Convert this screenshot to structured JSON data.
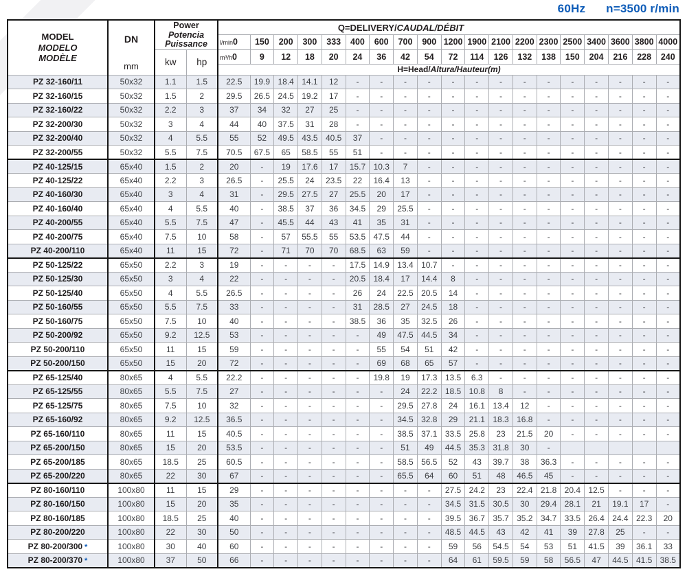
{
  "header": {
    "frequency": "60Hz",
    "speed": "n=3500 r/min"
  },
  "colors": {
    "accent_blue": "#0e5cb8",
    "shaded_row": "#e8ebf2",
    "grid_line": "#abadb2",
    "frame": "#161616"
  },
  "table": {
    "model_header": {
      "line1": "MODEL",
      "line2": "MODELO",
      "line3": "MODÈLE"
    },
    "dn_header": {
      "label": "DN",
      "unit": "mm"
    },
    "power_header": {
      "line1": "Power",
      "line2": "Potencia",
      "line3": "Puissance",
      "kw": "kw",
      "hp": "hp"
    },
    "q_header": {
      "roman": "Q=DELIVERY/",
      "italic": "CAUDAL/DÉBIT"
    },
    "head_header": {
      "roman": "H=Head/",
      "italic": "Altura/Hauteur(m)"
    },
    "flow_units": {
      "lmin": "l/min",
      "m3h": "m³/h"
    },
    "flow_lmin": [
      "0",
      "150",
      "200",
      "300",
      "333",
      "400",
      "600",
      "700",
      "900",
      "1200",
      "1900",
      "2100",
      "2200",
      "2300",
      "2500",
      "3400",
      "3600",
      "3800",
      "4000"
    ],
    "flow_m3h": [
      "0",
      "9",
      "12",
      "18",
      "20",
      "24",
      "36",
      "42",
      "54",
      "72",
      "114",
      "126",
      "132",
      "138",
      "150",
      "204",
      "216",
      "228",
      "240"
    ],
    "group_start_indexes": [
      6,
      13,
      21,
      29
    ],
    "rows": [
      {
        "model": "PZ 32-160/11",
        "star": false,
        "dn": "50x32",
        "kw": "1.1",
        "hp": "1.5",
        "h": [
          "22.5",
          "19.9",
          "18.4",
          "14.1",
          "12",
          "-",
          "-",
          "-",
          "-",
          "-",
          "-",
          "-",
          "-",
          "-",
          "-",
          "-",
          "-",
          "-",
          "-"
        ]
      },
      {
        "model": "PZ 32-160/15",
        "star": false,
        "dn": "50x32",
        "kw": "1.5",
        "hp": "2",
        "h": [
          "29.5",
          "26.5",
          "24.5",
          "19.2",
          "17",
          "-",
          "-",
          "-",
          "-",
          "-",
          "-",
          "-",
          "-",
          "-",
          "-",
          "-",
          "-",
          "-",
          "-"
        ]
      },
      {
        "model": "PZ 32-160/22",
        "star": false,
        "dn": "50x32",
        "kw": "2.2",
        "hp": "3",
        "h": [
          "37",
          "34",
          "32",
          "27",
          "25",
          "-",
          "-",
          "-",
          "-",
          "-",
          "-",
          "-",
          "-",
          "-",
          "-",
          "-",
          "-",
          "-",
          "-"
        ]
      },
      {
        "model": "PZ 32-200/30",
        "star": false,
        "dn": "50x32",
        "kw": "3",
        "hp": "4",
        "h": [
          "44",
          "40",
          "37.5",
          "31",
          "28",
          "-",
          "-",
          "-",
          "-",
          "-",
          "-",
          "-",
          "-",
          "-",
          "-",
          "-",
          "-",
          "-",
          "-"
        ]
      },
      {
        "model": "PZ 32-200/40",
        "star": false,
        "dn": "50x32",
        "kw": "4",
        "hp": "5.5",
        "h": [
          "55",
          "52",
          "49.5",
          "43.5",
          "40.5",
          "37",
          "-",
          "-",
          "-",
          "-",
          "-",
          "-",
          "-",
          "-",
          "-",
          "-",
          "-",
          "-",
          "-"
        ]
      },
      {
        "model": "PZ 32-200/55",
        "star": false,
        "dn": "50x32",
        "kw": "5.5",
        "hp": "7.5",
        "h": [
          "70.5",
          "67.5",
          "65",
          "58.5",
          "55",
          "51",
          "-",
          "-",
          "-",
          "-",
          "-",
          "-",
          "-",
          "-",
          "-",
          "-",
          "-",
          "-",
          "-"
        ]
      },
      {
        "model": "PZ 40-125/15",
        "star": false,
        "dn": "65x40",
        "kw": "1.5",
        "hp": "2",
        "h": [
          "20",
          "-",
          "19",
          "17.6",
          "17",
          "15.7",
          "10.3",
          "7",
          "-",
          "-",
          "-",
          "-",
          "-",
          "-",
          "-",
          "-",
          "-",
          "-",
          "-"
        ]
      },
      {
        "model": "PZ 40-125/22",
        "star": false,
        "dn": "65x40",
        "kw": "2.2",
        "hp": "3",
        "h": [
          "26.5",
          "-",
          "25.5",
          "24",
          "23.5",
          "22",
          "16.4",
          "13",
          "-",
          "-",
          "-",
          "-",
          "-",
          "-",
          "-",
          "-",
          "-",
          "-",
          "-"
        ]
      },
      {
        "model": "PZ 40-160/30",
        "star": false,
        "dn": "65x40",
        "kw": "3",
        "hp": "4",
        "h": [
          "31",
          "-",
          "29.5",
          "27.5",
          "27",
          "25.5",
          "20",
          "17",
          "-",
          "-",
          "-",
          "-",
          "-",
          "-",
          "-",
          "-",
          "-",
          "-",
          "-"
        ]
      },
      {
        "model": "PZ 40-160/40",
        "star": false,
        "dn": "65x40",
        "kw": "4",
        "hp": "5.5",
        "h": [
          "40",
          "-",
          "38.5",
          "37",
          "36",
          "34.5",
          "29",
          "25.5",
          "-",
          "-",
          "-",
          "-",
          "-",
          "-",
          "-",
          "-",
          "-",
          "-",
          "-"
        ]
      },
      {
        "model": "PZ 40-200/55",
        "star": false,
        "dn": "65x40",
        "kw": "5.5",
        "hp": "7.5",
        "h": [
          "47",
          "-",
          "45.5",
          "44",
          "43",
          "41",
          "35",
          "31",
          "-",
          "-",
          "-",
          "-",
          "-",
          "-",
          "-",
          "-",
          "-",
          "-",
          "-"
        ]
      },
      {
        "model": "PZ 40-200/75",
        "star": false,
        "dn": "65x40",
        "kw": "7.5",
        "hp": "10",
        "h": [
          "58",
          "-",
          "57",
          "55.5",
          "55",
          "53.5",
          "47.5",
          "44",
          "-",
          "-",
          "-",
          "-",
          "-",
          "-",
          "-",
          "-",
          "-",
          "-",
          "-"
        ]
      },
      {
        "model": "PZ 40-200/110",
        "star": false,
        "dn": "65x40",
        "kw": "11",
        "hp": "15",
        "h": [
          "72",
          "-",
          "71",
          "70",
          "70",
          "68.5",
          "63",
          "59",
          "-",
          "-",
          "-",
          "-",
          "-",
          "-",
          "-",
          "-",
          "-",
          "-",
          "-"
        ]
      },
      {
        "model": "PZ 50-125/22",
        "star": false,
        "dn": "65x50",
        "kw": "2.2",
        "hp": "3",
        "h": [
          "19",
          "-",
          "-",
          "-",
          "-",
          "17.5",
          "14.9",
          "13.4",
          "10.7",
          "-",
          "-",
          "-",
          "-",
          "-",
          "-",
          "-",
          "-",
          "-",
          "-"
        ]
      },
      {
        "model": "PZ 50-125/30",
        "star": false,
        "dn": "65x50",
        "kw": "3",
        "hp": "4",
        "h": [
          "22",
          "-",
          "-",
          "-",
          "-",
          "20.5",
          "18.4",
          "17",
          "14.4",
          "8",
          "-",
          "-",
          "-",
          "-",
          "-",
          "-",
          "-",
          "-",
          "-"
        ]
      },
      {
        "model": "PZ 50-125/40",
        "star": false,
        "dn": "65x50",
        "kw": "4",
        "hp": "5.5",
        "h": [
          "26.5",
          "-",
          "-",
          "-",
          "-",
          "26",
          "24",
          "22.5",
          "20.5",
          "14",
          "-",
          "-",
          "-",
          "-",
          "-",
          "-",
          "-",
          "-",
          "-"
        ]
      },
      {
        "model": "PZ 50-160/55",
        "star": false,
        "dn": "65x50",
        "kw": "5.5",
        "hp": "7.5",
        "h": [
          "33",
          "-",
          "-",
          "-",
          "-",
          "31",
          "28.5",
          "27",
          "24.5",
          "18",
          "-",
          "-",
          "-",
          "-",
          "-",
          "-",
          "-",
          "-",
          "-"
        ]
      },
      {
        "model": "PZ 50-160/75",
        "star": false,
        "dn": "65x50",
        "kw": "7.5",
        "hp": "10",
        "h": [
          "40",
          "-",
          "-",
          "-",
          "-",
          "38.5",
          "36",
          "35",
          "32.5",
          "26",
          "-",
          "-",
          "-",
          "-",
          "-",
          "-",
          "-",
          "-",
          "-"
        ]
      },
      {
        "model": "PZ 50-200/92",
        "star": false,
        "dn": "65x50",
        "kw": "9.2",
        "hp": "12.5",
        "h": [
          "53",
          "-",
          "-",
          "-",
          "-",
          "-",
          "49",
          "47.5",
          "44.5",
          "34",
          "-",
          "-",
          "-",
          "-",
          "-",
          "-",
          "-",
          "-",
          "-"
        ]
      },
      {
        "model": "PZ 50-200/110",
        "star": false,
        "dn": "65x50",
        "kw": "11",
        "hp": "15",
        "h": [
          "59",
          "-",
          "-",
          "-",
          "-",
          "-",
          "55",
          "54",
          "51",
          "42",
          "-",
          "-",
          "-",
          "-",
          "-",
          "-",
          "-",
          "-",
          "-"
        ]
      },
      {
        "model": "PZ 50-200/150",
        "star": false,
        "dn": "65x50",
        "kw": "15",
        "hp": "20",
        "h": [
          "72",
          "-",
          "-",
          "-",
          "-",
          "-",
          "69",
          "68",
          "65",
          "57",
          "-",
          "-",
          "-",
          "-",
          "-",
          "-",
          "-",
          "-",
          "-"
        ]
      },
      {
        "model": "PZ 65-125/40",
        "star": false,
        "dn": "80x65",
        "kw": "4",
        "hp": "5.5",
        "h": [
          "22.2",
          "-",
          "-",
          "-",
          "-",
          "-",
          "19.8",
          "19",
          "17.3",
          "13.5",
          "6.3",
          "-",
          "-",
          "-",
          "-",
          "-",
          "-",
          "-",
          "-"
        ]
      },
      {
        "model": "PZ 65-125/55",
        "star": false,
        "dn": "80x65",
        "kw": "5.5",
        "hp": "7.5",
        "h": [
          "27",
          "-",
          "-",
          "-",
          "-",
          "-",
          "-",
          "24",
          "22.2",
          "18.5",
          "10.8",
          "8",
          "-",
          "-",
          "-",
          "-",
          "-",
          "-",
          "-"
        ]
      },
      {
        "model": "PZ 65-125/75",
        "star": false,
        "dn": "80x65",
        "kw": "7.5",
        "hp": "10",
        "h": [
          "32",
          "-",
          "-",
          "-",
          "-",
          "-",
          "-",
          "29.5",
          "27.8",
          "24",
          "16.1",
          "13.4",
          "12",
          "-",
          "-",
          "-",
          "-",
          "-",
          "-"
        ]
      },
      {
        "model": "PZ 65-160/92",
        "star": false,
        "dn": "80x65",
        "kw": "9.2",
        "hp": "12.5",
        "h": [
          "36.5",
          "-",
          "-",
          "-",
          "-",
          "-",
          "-",
          "34.5",
          "32.8",
          "29",
          "21.1",
          "18.3",
          "16.8",
          "-",
          "-",
          "-",
          "-",
          "-",
          "-"
        ]
      },
      {
        "model": "PZ 65-160/110",
        "star": false,
        "dn": "80x65",
        "kw": "11",
        "hp": "15",
        "h": [
          "40.5",
          "-",
          "-",
          "-",
          "-",
          "-",
          "-",
          "38.5",
          "37.1",
          "33.5",
          "25.8",
          "23",
          "21.5",
          "20",
          "-",
          "-",
          "-",
          "-",
          "-"
        ]
      },
      {
        "model": "PZ 65-200/150",
        "star": false,
        "dn": "80x65",
        "kw": "15",
        "hp": "20",
        "h": [
          "53.5",
          "-",
          "-",
          "-",
          "-",
          "-",
          "-",
          "51",
          "49",
          "44.5",
          "35.3",
          "31.8",
          "30",
          "-",
          "",
          "",
          "",
          "",
          ""
        ]
      },
      {
        "model": "PZ 65-200/185",
        "star": false,
        "dn": "80x65",
        "kw": "18.5",
        "hp": "25",
        "h": [
          "60.5",
          "-",
          "-",
          "-",
          "-",
          "-",
          "-",
          "58.5",
          "56.5",
          "52",
          "43",
          "39.7",
          "38",
          "36.3",
          "-",
          "-",
          "-",
          "-",
          "-"
        ]
      },
      {
        "model": "PZ 65-200/220",
        "star": false,
        "dn": "80x65",
        "kw": "22",
        "hp": "30",
        "h": [
          "67",
          "-",
          "-",
          "-",
          "-",
          "-",
          "-",
          "65.5",
          "64",
          "60",
          "51",
          "48",
          "46.5",
          "45",
          "-",
          "-",
          "-",
          "-",
          "-"
        ]
      },
      {
        "model": "PZ 80-160/110",
        "star": false,
        "dn": "100x80",
        "kw": "11",
        "hp": "15",
        "h": [
          "29",
          "-",
          "-",
          "-",
          "-",
          "-",
          "-",
          "-",
          "-",
          "27.5",
          "24.2",
          "23",
          "22.4",
          "21.8",
          "20.4",
          "12.5",
          "-",
          "-",
          "-"
        ]
      },
      {
        "model": "PZ 80-160/150",
        "star": false,
        "dn": "100x80",
        "kw": "15",
        "hp": "20",
        "h": [
          "35",
          "-",
          "-",
          "-",
          "-",
          "-",
          "-",
          "-",
          "-",
          "34.5",
          "31.5",
          "30.5",
          "30",
          "29.4",
          "28.1",
          "21",
          "19.1",
          "17",
          "-"
        ]
      },
      {
        "model": "PZ 80-160/185",
        "star": false,
        "dn": "100x80",
        "kw": "18.5",
        "hp": "25",
        "h": [
          "40",
          "-",
          "-",
          "-",
          "-",
          "-",
          "-",
          "-",
          "-",
          "39.5",
          "36.7",
          "35.7",
          "35.2",
          "34.7",
          "33.5",
          "26.4",
          "24.4",
          "22.3",
          "20"
        ]
      },
      {
        "model": "PZ 80-200/220",
        "star": false,
        "dn": "100x80",
        "kw": "22",
        "hp": "30",
        "h": [
          "50",
          "-",
          "-",
          "-",
          "-",
          "-",
          "-",
          "-",
          "-",
          "48.5",
          "44.5",
          "43",
          "42",
          "41",
          "39",
          "27.8",
          "25",
          "-",
          "-"
        ]
      },
      {
        "model": "PZ 80-200/300",
        "star": true,
        "dn": "100x80",
        "kw": "30",
        "hp": "40",
        "h": [
          "60",
          "-",
          "-",
          "-",
          "-",
          "-",
          "-",
          "-",
          "-",
          "59",
          "56",
          "54.5",
          "54",
          "53",
          "51",
          "41.5",
          "39",
          "36.1",
          "33"
        ]
      },
      {
        "model": "PZ 80-200/370",
        "star": true,
        "dn": "100x80",
        "kw": "37",
        "hp": "50",
        "h": [
          "66",
          "-",
          "-",
          "-",
          "-",
          "-",
          "-",
          "-",
          "-",
          "64",
          "61",
          "59.5",
          "59",
          "58",
          "56.5",
          "47",
          "44.5",
          "41.5",
          "38.5"
        ]
      }
    ]
  }
}
